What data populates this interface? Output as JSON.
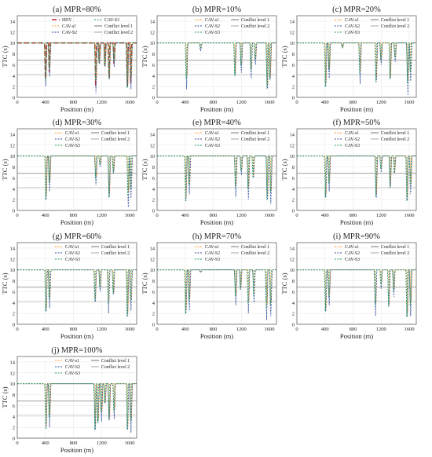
{
  "chart_data": [
    {
      "type": "line",
      "title": "(a) MPR=80%",
      "xlabel": "Position (m)",
      "ylabel": "TTC (s)",
      "xlim": [
        0,
        1700
      ],
      "ylim": [
        0,
        15
      ],
      "xticks": [
        "0",
        "400",
        "800",
        "1200",
        "1600"
      ],
      "yticks": [
        "0",
        "2",
        "4",
        "6",
        "8",
        "10",
        "12",
        "14"
      ],
      "grid": true,
      "legend_position": "top-right",
      "legend": [
        "HDV",
        "CAV-s1",
        "CAV-S2",
        "CAV-S3",
        "Conflict level 1",
        "Conflict level 2"
      ],
      "reference_lines": [
        {
          "name": "Conflict level 1",
          "y": 6.8
        },
        {
          "name": "Conflict level 2",
          "y": 4.2
        }
      ],
      "dips": [
        {
          "x": 405,
          "min": 1.6
        },
        {
          "x": 460,
          "min": 3.8
        },
        {
          "x": 1120,
          "min": 0.8
        },
        {
          "x": 1170,
          "min": 5.8
        },
        {
          "x": 1250,
          "min": 5.2
        },
        {
          "x": 1310,
          "min": 2.6
        },
        {
          "x": 1380,
          "min": 5.6
        },
        {
          "x": 1570,
          "min": 0.8
        },
        {
          "x": 1620,
          "min": 1.5
        }
      ]
    },
    {
      "type": "line",
      "title": "(b) MPR=10%",
      "xlabel": "Position (m)",
      "ylabel": "TTC (s)",
      "xlim": [
        0,
        1700
      ],
      "ylim": [
        0,
        15
      ],
      "xticks": [
        "0",
        "400",
        "800",
        "1200",
        "1600"
      ],
      "yticks": [
        "0",
        "2",
        "4",
        "6",
        "8",
        "10",
        "12",
        "14"
      ],
      "grid": true,
      "legend_position": "top-right",
      "legend": [
        "CAV-s1",
        "CAV-S2",
        "CAV-S3",
        "Conflict level 1",
        "Conflict level 2"
      ],
      "reference_lines": [
        {
          "name": "Conflict level 1",
          "y": 6.8
        },
        {
          "name": "Conflict level 2",
          "y": 4.2
        }
      ],
      "dips": [
        {
          "x": 420,
          "min": 1.5
        },
        {
          "x": 620,
          "min": 8.5
        },
        {
          "x": 1110,
          "min": 3.3
        },
        {
          "x": 1200,
          "min": 4.5
        },
        {
          "x": 1340,
          "min": 3.5
        },
        {
          "x": 1400,
          "min": 6.0
        },
        {
          "x": 1570,
          "min": 0.6
        },
        {
          "x": 1610,
          "min": 2.5
        }
      ]
    },
    {
      "type": "line",
      "title": "(c) MPR=20%",
      "xlabel": "Position (m)",
      "ylabel": "TTC (s)",
      "xlim": [
        0,
        1700
      ],
      "ylim": [
        0,
        15
      ],
      "xticks": [
        "0",
        "400",
        "800",
        "1200",
        "1600"
      ],
      "yticks": [
        "0",
        "2",
        "4",
        "6",
        "8",
        "10",
        "12",
        "14"
      ],
      "grid": true,
      "legend_position": "top-right",
      "legend": [
        "CAV-s1",
        "CAV-S2",
        "CAV-S3",
        "Conflict level 1",
        "Conflict level 2"
      ],
      "reference_lines": [
        {
          "name": "Conflict level 1",
          "y": 6.8
        },
        {
          "name": "Conflict level 2",
          "y": 4.2
        }
      ],
      "dips": [
        {
          "x": 410,
          "min": 1.0
        },
        {
          "x": 460,
          "min": 3.5
        },
        {
          "x": 650,
          "min": 9.0
        },
        {
          "x": 900,
          "min": 2.5
        },
        {
          "x": 1130,
          "min": 2.0
        },
        {
          "x": 1200,
          "min": 6.0
        },
        {
          "x": 1330,
          "min": 2.6
        },
        {
          "x": 1400,
          "min": 6.5
        },
        {
          "x": 1580,
          "min": 0.4
        },
        {
          "x": 1620,
          "min": 3.0
        }
      ]
    },
    {
      "type": "line",
      "title": "(d) MPR=30%",
      "xlabel": "Position (m)",
      "ylabel": "TTC (s)",
      "xlim": [
        0,
        1700
      ],
      "ylim": [
        0,
        15
      ],
      "xticks": [
        "0",
        "400",
        "800",
        "1200",
        "1600"
      ],
      "yticks": [
        "0",
        "2",
        "4",
        "6",
        "8",
        "10",
        "12",
        "14"
      ],
      "grid": true,
      "legend_position": "top-right",
      "legend": [
        "CAV-s1",
        "CAV-S2",
        "CAV-S3",
        "Conflict level 1",
        "Conflict level 2"
      ],
      "reference_lines": [
        {
          "name": "Conflict level 1",
          "y": 6.8
        },
        {
          "name": "Conflict level 2",
          "y": 4.2
        }
      ],
      "dips": [
        {
          "x": 410,
          "min": 1.0
        },
        {
          "x": 460,
          "min": 3.5
        },
        {
          "x": 1120,
          "min": 4.6
        },
        {
          "x": 1180,
          "min": 8.0
        },
        {
          "x": 1310,
          "min": 1.5
        },
        {
          "x": 1370,
          "min": 6.5
        },
        {
          "x": 1580,
          "min": 0.6
        },
        {
          "x": 1620,
          "min": 2.2
        }
      ]
    },
    {
      "type": "line",
      "title": "(e) MPR=40%",
      "xlabel": "Position (m)",
      "ylabel": "TTC (s)",
      "xlim": [
        0,
        1700
      ],
      "ylim": [
        0,
        15
      ],
      "xticks": [
        "0",
        "400",
        "800",
        "1200",
        "1600"
      ],
      "yticks": [
        "0",
        "2",
        "4",
        "6",
        "8",
        "10",
        "12",
        "14"
      ],
      "grid": true,
      "legend_position": "top-right",
      "legend": [
        "CAV-s1",
        "CAV-S2",
        "CAV-S3",
        "Conflict level 1",
        "Conflict level 2"
      ],
      "reference_lines": [
        {
          "name": "Conflict level 1",
          "y": 6.8
        },
        {
          "name": "Conflict level 2",
          "y": 4.2
        }
      ],
      "dips": [
        {
          "x": 410,
          "min": 0.8
        },
        {
          "x": 460,
          "min": 3.0
        },
        {
          "x": 1120,
          "min": 2.5
        },
        {
          "x": 1200,
          "min": 6.5
        },
        {
          "x": 1300,
          "min": 2.0
        },
        {
          "x": 1370,
          "min": 5.5
        },
        {
          "x": 1570,
          "min": 1.0
        },
        {
          "x": 1620,
          "min": 1.2
        }
      ]
    },
    {
      "type": "line",
      "title": "(f) MPR=50%",
      "xlabel": "Position (m)",
      "ylabel": "TTC (s)",
      "xlim": [
        0,
        1700
      ],
      "ylim": [
        0,
        15
      ],
      "xticks": [
        "0",
        "400",
        "800",
        "1200",
        "1600"
      ],
      "yticks": [
        "0",
        "2",
        "4",
        "6",
        "8",
        "10",
        "12",
        "14"
      ],
      "grid": true,
      "legend_position": "top-right",
      "legend": [
        "CAV-s1",
        "CAV-S2",
        "CAV-S3",
        "Conflict level 1",
        "Conflict level 2"
      ],
      "reference_lines": [
        {
          "name": "Conflict level 1",
          "y": 6.8
        },
        {
          "name": "Conflict level 2",
          "y": 4.2
        }
      ],
      "dips": [
        {
          "x": 410,
          "min": 1.5
        },
        {
          "x": 460,
          "min": 3.5
        },
        {
          "x": 1130,
          "min": 1.5
        },
        {
          "x": 1200,
          "min": 7.0
        },
        {
          "x": 1330,
          "min": 3.5
        },
        {
          "x": 1390,
          "min": 6.5
        },
        {
          "x": 1570,
          "min": 0.8
        },
        {
          "x": 1620,
          "min": 3.0
        }
      ]
    },
    {
      "type": "line",
      "title": "(g) MPR=60%",
      "xlabel": "Position (m)",
      "ylabel": "TTC (s)",
      "xlim": [
        0,
        1700
      ],
      "ylim": [
        0,
        15
      ],
      "xticks": [
        "0",
        "400",
        "800",
        "1200",
        "1600"
      ],
      "yticks": [
        "0",
        "2",
        "4",
        "6",
        "8",
        "10",
        "12",
        "14"
      ],
      "grid": true,
      "legend_position": "top-right",
      "legend": [
        "CAV-s1",
        "CAV-S2",
        "CAV-S3",
        "Conflict level 1",
        "Conflict level 2"
      ],
      "reference_lines": [
        {
          "name": "Conflict level 1",
          "y": 6.8
        },
        {
          "name": "Conflict level 2",
          "y": 4.2
        }
      ],
      "dips": [
        {
          "x": 410,
          "min": 1.5
        },
        {
          "x": 460,
          "min": 3.0
        },
        {
          "x": 1110,
          "min": 3.5
        },
        {
          "x": 1180,
          "min": 6.0
        },
        {
          "x": 1300,
          "min": 2.0
        },
        {
          "x": 1370,
          "min": 5.0
        },
        {
          "x": 1570,
          "min": 0.5
        },
        {
          "x": 1620,
          "min": 2.5
        }
      ]
    },
    {
      "type": "line",
      "title": "(h) MPR=70%",
      "xlabel": "Position (m)",
      "ylabel": "TTC (s)",
      "xlim": [
        0,
        1700
      ],
      "ylim": [
        0,
        15
      ],
      "xticks": [
        "0",
        "400",
        "800",
        "1200",
        "1600"
      ],
      "yticks": [
        "0",
        "2",
        "4",
        "6",
        "8",
        "10",
        "12",
        "14"
      ],
      "grid": true,
      "legend_position": "top-right",
      "legend": [
        "CAV-s1",
        "CAV-S2",
        "CAV-S3",
        "Conflict level 1",
        "Conflict level 2"
      ],
      "reference_lines": [
        {
          "name": "Conflict level 1",
          "y": 6.8
        },
        {
          "name": "Conflict level 2",
          "y": 4.2
        }
      ],
      "dips": [
        {
          "x": 410,
          "min": 1.0
        },
        {
          "x": 460,
          "min": 2.5
        },
        {
          "x": 620,
          "min": 9.5
        },
        {
          "x": 1120,
          "min": 3.5
        },
        {
          "x": 1190,
          "min": 6.0
        },
        {
          "x": 1300,
          "min": 2.0
        },
        {
          "x": 1380,
          "min": 4.0
        },
        {
          "x": 1560,
          "min": 0.8
        },
        {
          "x": 1620,
          "min": 1.5
        }
      ]
    },
    {
      "type": "line",
      "title": "(i) MPR=90%",
      "xlabel": "Position (m)",
      "ylabel": "TTC (s)",
      "xlim": [
        0,
        1700
      ],
      "ylim": [
        0,
        15
      ],
      "xticks": [
        "0",
        "400",
        "800",
        "1200",
        "1600"
      ],
      "yticks": [
        "0",
        "2",
        "4",
        "6",
        "8",
        "10",
        "12",
        "14"
      ],
      "grid": true,
      "legend_position": "top-right",
      "legend": [
        "CAV-s1",
        "CAV-S2",
        "CAV-S3",
        "Conflict level 1",
        "Conflict level 2"
      ],
      "reference_lines": [
        {
          "name": "Conflict level 1",
          "y": 6.8
        },
        {
          "name": "Conflict level 2",
          "y": 4.2
        }
      ],
      "dips": [
        {
          "x": 410,
          "min": 1.5
        },
        {
          "x": 460,
          "min": 3.5
        },
        {
          "x": 1120,
          "min": 1.5
        },
        {
          "x": 1200,
          "min": 6.5
        },
        {
          "x": 1310,
          "min": 2.5
        },
        {
          "x": 1380,
          "min": 5.0
        },
        {
          "x": 1570,
          "min": 0.4
        },
        {
          "x": 1620,
          "min": 1.5
        }
      ]
    },
    {
      "type": "line",
      "title": "(j) MPR=100%",
      "xlabel": "Position (m)",
      "ylabel": "TTC (s)",
      "xlim": [
        0,
        1700
      ],
      "ylim": [
        0,
        15
      ],
      "xticks": [
        "0",
        "400",
        "800",
        "1200",
        "1600"
      ],
      "yticks": [
        "0",
        "2",
        "4",
        "6",
        "8",
        "10",
        "12",
        "14"
      ],
      "grid": true,
      "legend_position": "top-right",
      "legend": [
        "CAV-s1",
        "CAV-S2",
        "CAV-S3",
        "Conflict level 1",
        "Conflict level 2"
      ],
      "reference_lines": [
        {
          "name": "Conflict level 1",
          "y": 6.8
        },
        {
          "name": "Conflict level 2",
          "y": 4.2
        }
      ],
      "dips": [
        {
          "x": 410,
          "min": 0.8
        },
        {
          "x": 460,
          "min": 2.0
        },
        {
          "x": 1110,
          "min": 0.5
        },
        {
          "x": 1150,
          "min": 2.0
        },
        {
          "x": 1200,
          "min": 3.0
        },
        {
          "x": 1250,
          "min": 6.0
        },
        {
          "x": 1310,
          "min": 2.5
        },
        {
          "x": 1380,
          "min": 3.5
        },
        {
          "x": 1570,
          "min": 0.6
        },
        {
          "x": 1620,
          "min": 1.0
        }
      ]
    }
  ],
  "series_styles": {
    "HDV": {
      "color": "#d62728",
      "dash": "6,3",
      "width": 1.6
    },
    "CAV-s1": {
      "color": "#ff9f2e",
      "dash": "2,1.5",
      "width": 0.8
    },
    "CAV-S2": {
      "color": "#2f4f9e",
      "dash": "2,1.5",
      "width": 0.8
    },
    "CAV-S3": {
      "color": "#2ca05a",
      "dash": "2,1.5",
      "width": 0.8
    },
    "Conflict level 1": {
      "color": "#666666",
      "dash": "",
      "width": 0.6
    },
    "Conflict level 2": {
      "color": "#9a9a9a",
      "dash": "",
      "width": 0.6
    }
  }
}
